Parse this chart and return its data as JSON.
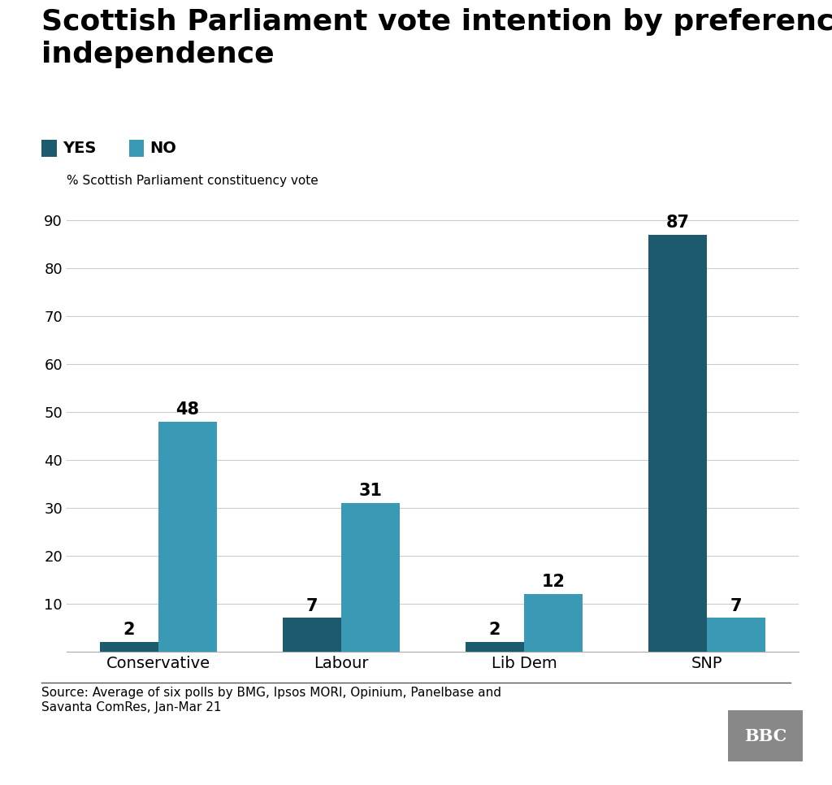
{
  "title": "Scottish Parliament vote intention by preference on\nindependence",
  "ylabel": "% Scottish Parliament constituency vote",
  "categories": [
    "Conservative",
    "Labour",
    "Lib Dem",
    "SNP"
  ],
  "yes_values": [
    2,
    7,
    2,
    87
  ],
  "no_values": [
    48,
    31,
    12,
    7
  ],
  "yes_color": "#1d5a6e",
  "no_color": "#3a9ab5",
  "ylim": [
    0,
    95
  ],
  "yticks": [
    0,
    10,
    20,
    30,
    40,
    50,
    60,
    70,
    80,
    90
  ],
  "bar_width": 0.32,
  "source_text": "Source: Average of six polls by BMG, Ipsos MORI, Opinium, Panelbase and\nSavanta ComRes, Jan-Mar 21",
  "background_color": "#ffffff",
  "legend_yes": "YES",
  "legend_no": "NO",
  "title_fontsize": 26,
  "label_fontsize": 15,
  "tick_fontsize": 13,
  "xticklabel_fontsize": 14,
  "ylabel_fontsize": 11,
  "legend_fontsize": 14,
  "source_fontsize": 11
}
